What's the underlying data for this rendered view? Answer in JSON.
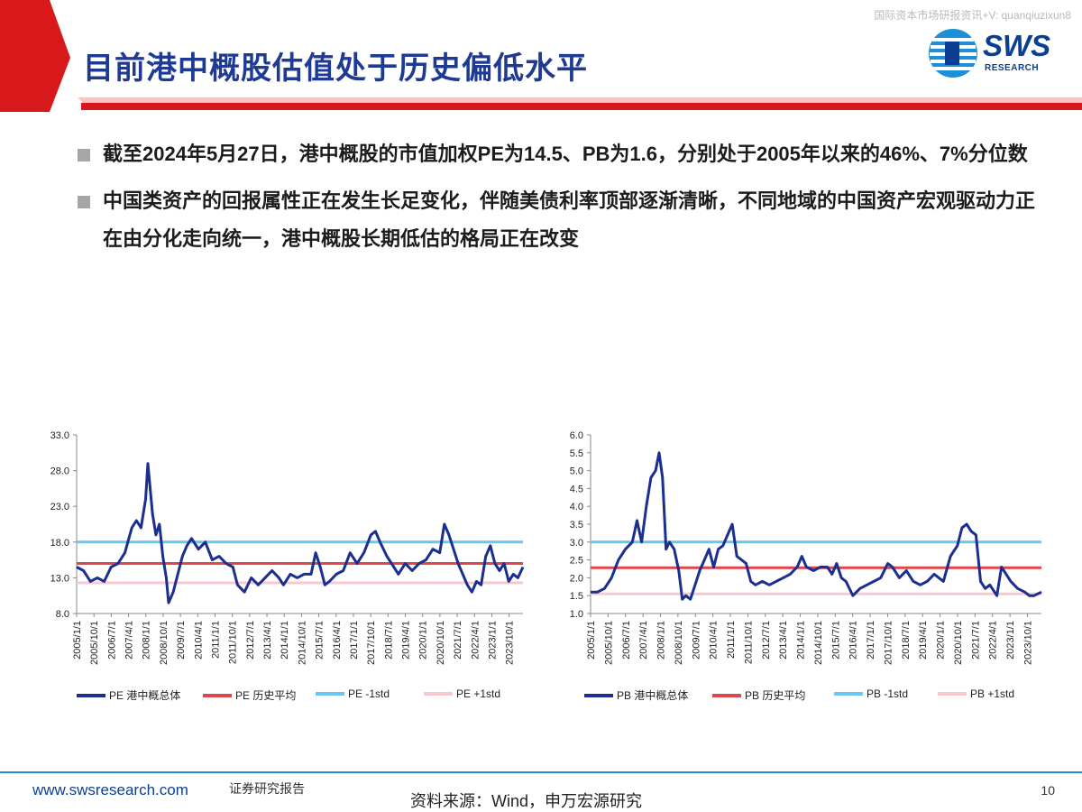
{
  "watermark": "国际资本市场研报资讯+V: quanqiuzixun8",
  "title": "目前港中概股估值处于历史偏低水平",
  "logo": {
    "main": "SWS",
    "sub": "RESEARCH"
  },
  "bullets": [
    "截至2024年5月27日，港中概股的市值加权PE为14.5、PB为1.6，分别处于2005年以来的46%、7%分位数",
    "中国类资产的回报属性正在发生长足变化，伴随美债利率顶部逐渐清晰，不同地域的中国资产宏观驱动力正在由分化走向统一，港中概股长期低估的格局正在改变"
  ],
  "footer": {
    "url": "www.swsresearch.com",
    "report": "证券研究报告",
    "source": "资料来源：Wind，申万宏源研究",
    "page": "10"
  },
  "colors": {
    "brand": "#0c3f93",
    "accent_red": "#d7191c",
    "main_series": "#1a2f8f",
    "avg": "#e0474c",
    "minus_std": "#64c8f0",
    "plus_std": "#f6c8d0"
  },
  "chart_data": [
    {
      "type": "line",
      "x_ticks": [
        "2005/1/1",
        "2005/10/1",
        "2006/7/1",
        "2007/4/1",
        "2008/1/1",
        "2008/10/1",
        "2009/7/1",
        "2010/4/1",
        "2011/1/1",
        "2011/10/1",
        "2012/7/1",
        "2013/4/1",
        "2014/1/1",
        "2014/10/1",
        "2015/7/1",
        "2016/4/1",
        "2017/1/1",
        "2017/10/1",
        "2018/7/1",
        "2019/4/1",
        "2020/1/1",
        "2020/10/1",
        "2021/7/1",
        "2022/4/1",
        "2023/1/1",
        "2023/10/1"
      ],
      "ylim": [
        8,
        33
      ],
      "yticks": [
        "8.0",
        "13.0",
        "18.0",
        "23.0",
        "28.0",
        "33.0"
      ],
      "xrange": [
        2005.0,
        2024.42
      ],
      "series": [
        {
          "name": "PE 港中概总体",
          "style": "line",
          "points": [
            [
              2005.0,
              14.5
            ],
            [
              2005.3,
              14.0
            ],
            [
              2005.6,
              12.5
            ],
            [
              2005.9,
              13.0
            ],
            [
              2006.2,
              12.5
            ],
            [
              2006.5,
              14.5
            ],
            [
              2006.8,
              15.0
            ],
            [
              2007.1,
              16.5
            ],
            [
              2007.4,
              20.0
            ],
            [
              2007.6,
              21.0
            ],
            [
              2007.8,
              20.0
            ],
            [
              2008.0,
              24.0
            ],
            [
              2008.1,
              29.0
            ],
            [
              2008.3,
              22.0
            ],
            [
              2008.45,
              19.0
            ],
            [
              2008.6,
              20.5
            ],
            [
              2008.75,
              16.0
            ],
            [
              2008.9,
              13.0
            ],
            [
              2009.0,
              9.5
            ],
            [
              2009.2,
              11.0
            ],
            [
              2009.4,
              13.5
            ],
            [
              2009.6,
              16.0
            ],
            [
              2009.8,
              17.5
            ],
            [
              2010.0,
              18.5
            ],
            [
              2010.3,
              17.0
            ],
            [
              2010.6,
              18.0
            ],
            [
              2010.9,
              15.5
            ],
            [
              2011.2,
              16.0
            ],
            [
              2011.5,
              15.0
            ],
            [
              2011.8,
              14.5
            ],
            [
              2012.0,
              12.0
            ],
            [
              2012.3,
              11.0
            ],
            [
              2012.6,
              13.0
            ],
            [
              2012.9,
              12.0
            ],
            [
              2013.2,
              13.0
            ],
            [
              2013.5,
              14.0
            ],
            [
              2013.8,
              13.0
            ],
            [
              2014.0,
              12.0
            ],
            [
              2014.3,
              13.5
            ],
            [
              2014.6,
              13.0
            ],
            [
              2014.9,
              13.5
            ],
            [
              2015.2,
              13.5
            ],
            [
              2015.4,
              16.5
            ],
            [
              2015.6,
              14.5
            ],
            [
              2015.8,
              12.0
            ],
            [
              2016.0,
              12.5
            ],
            [
              2016.3,
              13.5
            ],
            [
              2016.6,
              14.0
            ],
            [
              2016.9,
              16.5
            ],
            [
              2017.2,
              15.0
            ],
            [
              2017.5,
              16.5
            ],
            [
              2017.8,
              19.0
            ],
            [
              2018.0,
              19.5
            ],
            [
              2018.2,
              18.0
            ],
            [
              2018.5,
              16.0
            ],
            [
              2018.8,
              14.5
            ],
            [
              2019.0,
              13.5
            ],
            [
              2019.3,
              15.0
            ],
            [
              2019.6,
              14.0
            ],
            [
              2019.9,
              15.0
            ],
            [
              2020.2,
              15.5
            ],
            [
              2020.5,
              17.0
            ],
            [
              2020.8,
              16.5
            ],
            [
              2021.0,
              20.5
            ],
            [
              2021.2,
              19.0
            ],
            [
              2021.4,
              17.0
            ],
            [
              2021.6,
              15.0
            ],
            [
              2021.8,
              13.5
            ],
            [
              2022.0,
              12.0
            ],
            [
              2022.2,
              11.0
            ],
            [
              2022.4,
              12.5
            ],
            [
              2022.6,
              12.0
            ],
            [
              2022.8,
              16.0
            ],
            [
              2023.0,
              17.5
            ],
            [
              2023.2,
              15.0
            ],
            [
              2023.4,
              14.0
            ],
            [
              2023.6,
              15.0
            ],
            [
              2023.8,
              12.5
            ],
            [
              2024.0,
              13.5
            ],
            [
              2024.2,
              13.0
            ],
            [
              2024.42,
              14.5
            ]
          ]
        },
        {
          "name": "PE 历史平均",
          "style": "hline",
          "y": 15.0
        },
        {
          "name": "PE -1std",
          "style": "hline",
          "y": 18.0
        },
        {
          "name": "PE +1std",
          "style": "hline",
          "y": 12.3
        }
      ]
    },
    {
      "type": "line",
      "x_ticks": [
        "2005/1/1",
        "2005/10/1",
        "2006/7/1",
        "2007/4/1",
        "2008/1/1",
        "2008/10/1",
        "2009/7/1",
        "2010/4/1",
        "2011/1/1",
        "2011/10/1",
        "2012/7/1",
        "2013/4/1",
        "2014/1/1",
        "2014/10/1",
        "2015/7/1",
        "2016/4/1",
        "2017/1/1",
        "2017/10/1",
        "2018/7/1",
        "2019/4/1",
        "2020/1/1",
        "2020/10/1",
        "2021/7/1",
        "2022/4/1",
        "2023/1/1",
        "2023/10/1"
      ],
      "ylim": [
        1.0,
        6.0
      ],
      "yticks": [
        "1.0",
        "1.5",
        "2.0",
        "2.5",
        "3.0",
        "3.5",
        "4.0",
        "4.5",
        "5.0",
        "5.5",
        "6.0"
      ],
      "xrange": [
        2005.0,
        2024.42
      ],
      "series": [
        {
          "name": "PB 港中概总体",
          "style": "line",
          "points": [
            [
              2005.0,
              1.6
            ],
            [
              2005.3,
              1.6
            ],
            [
              2005.6,
              1.7
            ],
            [
              2005.9,
              2.0
            ],
            [
              2006.2,
              2.5
            ],
            [
              2006.5,
              2.8
            ],
            [
              2006.8,
              3.0
            ],
            [
              2007.0,
              3.6
            ],
            [
              2007.2,
              3.0
            ],
            [
              2007.4,
              4.0
            ],
            [
              2007.6,
              4.8
            ],
            [
              2007.8,
              5.0
            ],
            [
              2007.95,
              5.5
            ],
            [
              2008.1,
              4.8
            ],
            [
              2008.25,
              2.8
            ],
            [
              2008.4,
              3.0
            ],
            [
              2008.6,
              2.8
            ],
            [
              2008.8,
              2.2
            ],
            [
              2008.95,
              1.4
            ],
            [
              2009.1,
              1.5
            ],
            [
              2009.3,
              1.4
            ],
            [
              2009.5,
              1.8
            ],
            [
              2009.7,
              2.2
            ],
            [
              2009.9,
              2.5
            ],
            [
              2010.1,
              2.8
            ],
            [
              2010.3,
              2.3
            ],
            [
              2010.5,
              2.8
            ],
            [
              2010.7,
              2.9
            ],
            [
              2010.9,
              3.2
            ],
            [
              2011.1,
              3.5
            ],
            [
              2011.3,
              2.6
            ],
            [
              2011.5,
              2.5
            ],
            [
              2011.7,
              2.4
            ],
            [
              2011.9,
              1.9
            ],
            [
              2012.1,
              1.8
            ],
            [
              2012.4,
              1.9
            ],
            [
              2012.7,
              1.8
            ],
            [
              2013.0,
              1.9
            ],
            [
              2013.3,
              2.0
            ],
            [
              2013.6,
              2.1
            ],
            [
              2013.9,
              2.3
            ],
            [
              2014.1,
              2.6
            ],
            [
              2014.3,
              2.3
            ],
            [
              2014.6,
              2.2
            ],
            [
              2014.9,
              2.3
            ],
            [
              2015.2,
              2.3
            ],
            [
              2015.4,
              2.1
            ],
            [
              2015.6,
              2.4
            ],
            [
              2015.8,
              2.0
            ],
            [
              2016.0,
              1.9
            ],
            [
              2016.3,
              1.5
            ],
            [
              2016.6,
              1.7
            ],
            [
              2016.9,
              1.8
            ],
            [
              2017.2,
              1.9
            ],
            [
              2017.5,
              2.0
            ],
            [
              2017.8,
              2.4
            ],
            [
              2018.0,
              2.3
            ],
            [
              2018.3,
              2.0
            ],
            [
              2018.6,
              2.2
            ],
            [
              2018.9,
              1.9
            ],
            [
              2019.2,
              1.8
            ],
            [
              2019.5,
              1.9
            ],
            [
              2019.8,
              2.1
            ],
            [
              2020.0,
              2.0
            ],
            [
              2020.2,
              1.9
            ],
            [
              2020.5,
              2.6
            ],
            [
              2020.8,
              2.9
            ],
            [
              2021.0,
              3.4
            ],
            [
              2021.2,
              3.5
            ],
            [
              2021.4,
              3.3
            ],
            [
              2021.6,
              3.2
            ],
            [
              2021.8,
              1.9
            ],
            [
              2022.0,
              1.7
            ],
            [
              2022.2,
              1.8
            ],
            [
              2022.5,
              1.5
            ],
            [
              2022.7,
              2.3
            ],
            [
              2022.9,
              2.1
            ],
            [
              2023.1,
              1.9
            ],
            [
              2023.4,
              1.7
            ],
            [
              2023.7,
              1.6
            ],
            [
              2023.9,
              1.5
            ],
            [
              2024.1,
              1.5
            ],
            [
              2024.42,
              1.6
            ]
          ]
        },
        {
          "name": "PB 历史平均",
          "style": "hline",
          "y": 2.28
        },
        {
          "name": "PB -1std",
          "style": "hline",
          "y": 3.0
        },
        {
          "name": "PB +1std",
          "style": "hline",
          "y": 1.55
        }
      ]
    }
  ]
}
